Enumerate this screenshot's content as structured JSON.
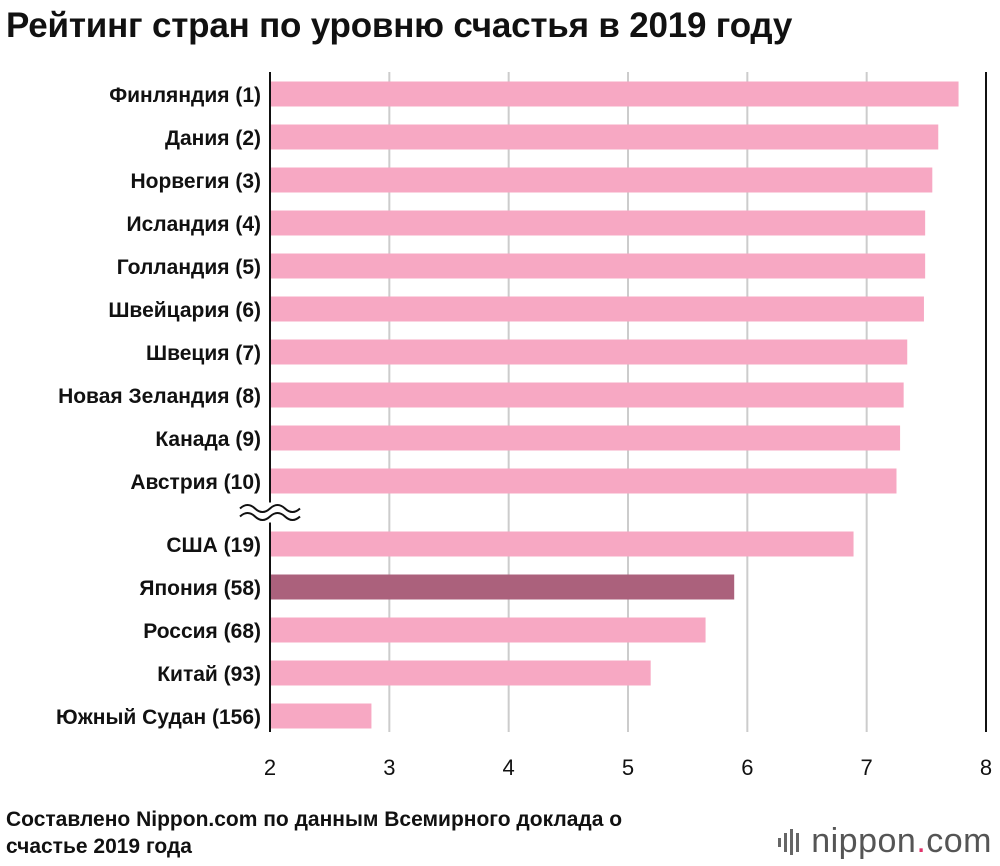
{
  "title": "Рейтинг стран по уровню счастья в 2019 году",
  "source": "Составлено Nippon.com по данным Всемирного доклада о счастье 2019 года",
  "logo": {
    "name": "nippon",
    "dot": ".",
    "tld": "com"
  },
  "colors": {
    "bar": "#f7a8c3",
    "highlight": "#ab617c",
    "grid": "#cccccc",
    "axis": "#111111"
  },
  "chart_data": {
    "type": "bar",
    "orientation": "horizontal",
    "categories": [
      "Финляндия (1)",
      "Дания (2)",
      "Норвегия (3)",
      "Исландия (4)",
      "Голландия (5)",
      "Швейцария (6)",
      "Швеция (7)",
      "Новая Зеландия (8)",
      "Канада (9)",
      "Австрия (10)",
      "США (19)",
      "Япония (58)",
      "Россия (68)",
      "Китай (93)",
      "Южный Судан (156)"
    ],
    "values": [
      7.77,
      7.6,
      7.55,
      7.49,
      7.49,
      7.48,
      7.34,
      7.31,
      7.28,
      7.25,
      6.89,
      5.89,
      5.65,
      5.19,
      2.85
    ],
    "highlight": "Япония (58)",
    "axis_break_after": "Австрия (10)",
    "xlim": [
      2,
      8
    ],
    "xticks": [
      2,
      3,
      4,
      5,
      6,
      7,
      8
    ],
    "grid": true,
    "xlabel": "",
    "ylabel": ""
  }
}
